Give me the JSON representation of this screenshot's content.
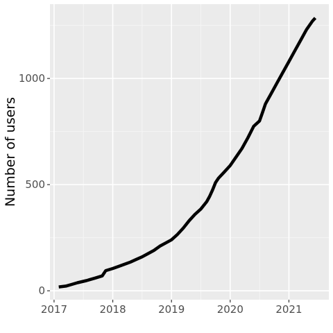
{
  "chart_data": {
    "type": "line",
    "title": "",
    "xlabel": "",
    "ylabel": "Number of users",
    "xlim": [
      2016.93,
      2021.68
    ],
    "ylim": [
      -42,
      1350
    ],
    "x_ticks": [
      2017,
      2018,
      2019,
      2020,
      2021
    ],
    "x_tick_labels": [
      "2017",
      "2018",
      "2019",
      "2020",
      "2021"
    ],
    "y_ticks": [
      0,
      500,
      1000
    ],
    "y_tick_labels": [
      "0",
      "500",
      "1000"
    ],
    "grid": true,
    "legend": "none",
    "colors": {
      "panel_background": "#ebebeb",
      "grid_major": "#ffffff",
      "grid_minor": "#f5f5f5",
      "line": "#000000",
      "tick_label": "#4d4d4d",
      "tick_mark": "#333333"
    },
    "series": [
      {
        "x": [
          2017.08,
          2017.2,
          2017.3,
          2017.4,
          2017.55,
          2017.7,
          2017.82,
          2017.88,
          2018.0,
          2018.1,
          2018.2,
          2018.3,
          2018.4,
          2018.5,
          2018.6,
          2018.7,
          2018.8,
          2018.9,
          2019.0,
          2019.1,
          2019.2,
          2019.3,
          2019.4,
          2019.5,
          2019.6,
          2019.65,
          2019.7,
          2019.75,
          2019.8,
          2019.9,
          2020.0,
          2020.1,
          2020.2,
          2020.3,
          2020.4,
          2020.5,
          2020.55,
          2020.6,
          2020.7,
          2020.8,
          2020.9,
          2021.0,
          2021.1,
          2021.2,
          2021.3,
          2021.4,
          2021.45
        ],
        "y": [
          18,
          22,
          30,
          38,
          48,
          60,
          70,
          95,
          105,
          115,
          125,
          135,
          148,
          160,
          175,
          190,
          210,
          225,
          240,
          265,
          295,
          330,
          360,
          385,
          420,
          445,
          475,
          510,
          530,
          560,
          590,
          630,
          670,
          720,
          775,
          800,
          840,
          880,
          930,
          980,
          1030,
          1080,
          1130,
          1180,
          1230,
          1270,
          1285
        ]
      }
    ]
  }
}
